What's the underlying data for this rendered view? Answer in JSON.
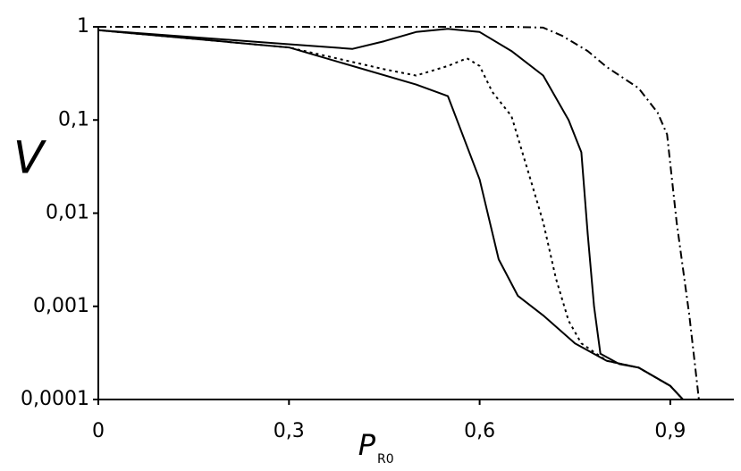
{
  "chart_data": {
    "type": "line",
    "ylabel": "V",
    "xlabel": "P",
    "xlabel_sub": "R0",
    "log_y": true,
    "grid": false,
    "xlim": [
      0,
      1
    ],
    "xticks": [
      0,
      {
        "value": 0.3,
        "label": "0,3"
      },
      {
        "value": 0.6,
        "label": "0,6"
      },
      {
        "value": 0.9,
        "label": "0,9"
      }
    ],
    "ylim": [
      0.0001,
      1
    ],
    "yticks": [
      1,
      {
        "value": 0.1,
        "label": "0,1"
      },
      {
        "value": 0.01,
        "label": "0,01"
      },
      {
        "value": 0.001,
        "label": "0,001"
      },
      {
        "value": 0.0001,
        "label": "0,0001"
      }
    ],
    "series": [
      {
        "color": "#000000",
        "dash": "solid",
        "x": [
          0,
          0.3,
          0.5,
          0.55,
          0.6,
          0.63,
          0.66,
          0.7,
          0.75,
          0.8,
          0.85,
          0.9,
          0.92
        ],
        "values": [
          0.92,
          0.6,
          0.24,
          0.18,
          0.023,
          0.0032,
          0.0013,
          0.0008,
          0.0004,
          0.00026,
          0.00022,
          0.00014,
          0.0001
        ]
      },
      {
        "color": "#000000",
        "dash": "dotted",
        "x": [
          0,
          0.3,
          0.45,
          0.5,
          0.55,
          0.58,
          0.6,
          0.62,
          0.65,
          0.68,
          0.7,
          0.72,
          0.74,
          0.76,
          0.8,
          0.85,
          0.9,
          0.92
        ],
        "values": [
          0.92,
          0.6,
          0.35,
          0.3,
          0.38,
          0.46,
          0.38,
          0.2,
          0.11,
          0.023,
          0.008,
          0.002,
          0.0007,
          0.0004,
          0.00026,
          0.00022,
          0.00014,
          0.0001
        ]
      },
      {
        "color": "#000000",
        "dash": "solid",
        "x": [
          0,
          0.3,
          0.4,
          0.45,
          0.5,
          0.55,
          0.6,
          0.65,
          0.7,
          0.74,
          0.76,
          0.77,
          0.78,
          0.79,
          0.82,
          0.85,
          0.9,
          0.92
        ],
        "values": [
          0.92,
          0.65,
          0.58,
          0.7,
          0.88,
          0.95,
          0.88,
          0.55,
          0.3,
          0.1,
          0.045,
          0.006,
          0.001,
          0.00031,
          0.00024,
          0.00022,
          0.00014,
          0.0001
        ]
      },
      {
        "color": "#000000",
        "dash": "dashdot",
        "x": [
          0,
          0.3,
          0.65,
          0.7,
          0.73,
          0.77,
          0.8,
          0.85,
          0.88,
          0.895,
          0.91,
          0.93,
          0.945
        ],
        "values": [
          1,
          1,
          1,
          0.98,
          0.8,
          0.55,
          0.37,
          0.22,
          0.12,
          0.07,
          0.008,
          0.0008,
          0.0001
        ]
      }
    ]
  }
}
